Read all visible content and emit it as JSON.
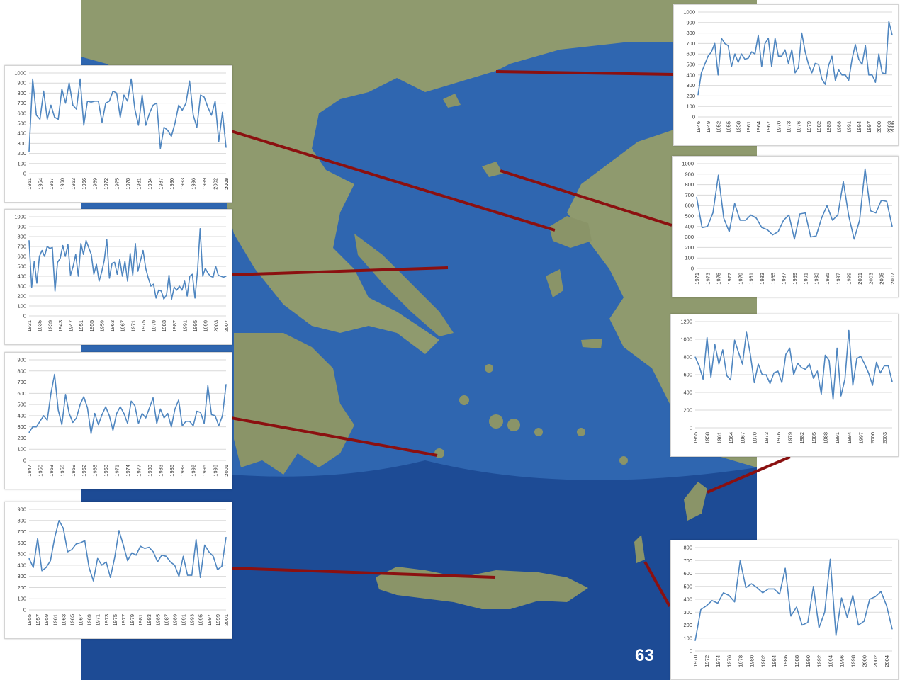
{
  "page": {
    "number": "63"
  },
  "colors": {
    "sea": "#2f66b0",
    "deep_sea": "#1d4b95",
    "land": "#8f9a6e",
    "connector": "#8b1010",
    "series": "#4f86c0",
    "grid": "#d9d9d9"
  },
  "chart_data": [
    {
      "id": "chart-1951-2008",
      "type": "line",
      "ylim": [
        0,
        1000
      ],
      "yticks": [
        0,
        100,
        200,
        300,
        400,
        500,
        600,
        700,
        800,
        900,
        1000
      ],
      "x_start": 1951,
      "x_tick_labels": [
        "1951",
        "1954",
        "1957",
        "1960",
        "1963",
        "1966",
        "1969",
        "1972",
        "1975",
        "1978",
        "1981",
        "1984",
        "1987",
        "1990",
        "1993",
        "1996",
        "1999",
        "2002",
        "2005",
        "2008"
      ],
      "values": [
        220,
        940,
        580,
        540,
        820,
        540,
        680,
        560,
        540,
        840,
        700,
        900,
        680,
        640,
        940,
        480,
        720,
        710,
        720,
        720,
        510,
        700,
        720,
        820,
        800,
        560,
        780,
        720,
        940,
        640,
        480,
        780,
        480,
        600,
        680,
        700,
        250,
        460,
        430,
        370,
        500,
        680,
        630,
        700,
        920,
        580,
        460,
        780,
        760,
        660,
        580,
        720,
        320,
        610,
        260
      ]
    },
    {
      "id": "chart-1931-2007",
      "type": "line",
      "ylim": [
        0,
        1000
      ],
      "yticks": [
        0,
        100,
        200,
        300,
        400,
        500,
        600,
        700,
        800,
        900,
        1000
      ],
      "x_start": 1931,
      "x_tick_labels": [
        "1931",
        "1935",
        "1939",
        "1943",
        "1947",
        "1951",
        "1955",
        "1959",
        "1963",
        "1967",
        "1971",
        "1975",
        "1979",
        "1983",
        "1987",
        "1991",
        "1995",
        "1999",
        "2003",
        "2007"
      ],
      "values": [
        760,
        290,
        550,
        330,
        600,
        660,
        600,
        700,
        680,
        690,
        250,
        540,
        580,
        710,
        600,
        720,
        410,
        500,
        620,
        400,
        730,
        620,
        760,
        690,
        620,
        420,
        520,
        350,
        440,
        560,
        770,
        380,
        530,
        540,
        420,
        570,
        400,
        550,
        350,
        630,
        410,
        730,
        450,
        560,
        660,
        480,
        380,
        300,
        320,
        180,
        260,
        250,
        170,
        210,
        410,
        170,
        290,
        260,
        300,
        260,
        350,
        200,
        400,
        420,
        180,
        460,
        880,
        400,
        480,
        430,
        400,
        390,
        500,
        410,
        400,
        390,
        400
      ]
    },
    {
      "id": "chart-1947-2001",
      "type": "line",
      "ylim": [
        0,
        900
      ],
      "yticks": [
        0,
        100,
        200,
        300,
        400,
        500,
        600,
        700,
        800,
        900
      ],
      "x_start": 1947,
      "x_tick_labels": [
        "1947",
        "1950",
        "1953",
        "1956",
        "1959",
        "1962",
        "1965",
        "1968",
        "1971",
        "1974",
        "1977",
        "1980",
        "1983",
        "1986",
        "1989",
        "1992",
        "1995",
        "1998",
        "2001"
      ],
      "values": [
        250,
        300,
        300,
        350,
        400,
        360,
        600,
        770,
        450,
        320,
        590,
        420,
        340,
        380,
        500,
        570,
        470,
        240,
        420,
        320,
        410,
        480,
        400,
        270,
        420,
        480,
        420,
        330,
        530,
        490,
        330,
        420,
        380,
        470,
        560,
        330,
        460,
        380,
        420,
        300,
        460,
        540,
        310,
        350,
        350,
        310,
        440,
        430,
        330,
        670,
        410,
        400,
        310,
        400,
        680
      ]
    },
    {
      "id": "chart-1955-2001",
      "type": "line",
      "ylim": [
        0,
        900
      ],
      "yticks": [
        0,
        100,
        200,
        300,
        400,
        500,
        600,
        700,
        800,
        900
      ],
      "x_start": 1955,
      "x_tick_labels": [
        "1955",
        "1957",
        "1959",
        "1961",
        "1963",
        "1965",
        "1967",
        "1969",
        "1971",
        "1973",
        "1975",
        "1977",
        "1979",
        "1981",
        "1983",
        "1985",
        "1987",
        "1989",
        "1991",
        "1993",
        "1995",
        "1997",
        "1999",
        "2001"
      ],
      "values": [
        460,
        380,
        640,
        350,
        380,
        440,
        650,
        800,
        730,
        520,
        540,
        590,
        600,
        620,
        380,
        260,
        460,
        400,
        430,
        290,
        470,
        710,
        580,
        440,
        510,
        490,
        570,
        550,
        560,
        520,
        430,
        490,
        480,
        430,
        400,
        300,
        480,
        310,
        310,
        630,
        290,
        580,
        520,
        480,
        360,
        390,
        650
      ]
    },
    {
      "id": "chart-1946-2006",
      "type": "line",
      "ylim": [
        0,
        1000
      ],
      "yticks": [
        0,
        100,
        200,
        300,
        400,
        500,
        600,
        700,
        800,
        900,
        1000
      ],
      "x_start": 1946,
      "x_tick_labels": [
        "1946",
        "1949",
        "1952",
        "1955",
        "1958",
        "1961",
        "1964",
        "1967",
        "1970",
        "1973",
        "1976",
        "1979",
        "1982",
        "1985",
        "1988",
        "1991",
        "1994",
        "1997",
        "2000",
        "2003",
        "2006"
      ],
      "values": [
        210,
        420,
        500,
        580,
        620,
        700,
        400,
        750,
        700,
        680,
        480,
        600,
        520,
        600,
        550,
        560,
        620,
        600,
        780,
        480,
        700,
        750,
        480,
        750,
        580,
        580,
        640,
        510,
        640,
        420,
        470,
        800,
        620,
        500,
        420,
        510,
        500,
        360,
        310,
        490,
        580,
        350,
        450,
        400,
        400,
        350,
        550,
        690,
        550,
        500,
        680,
        400,
        400,
        330,
        600,
        420,
        410,
        910,
        780
      ]
    },
    {
      "id": "chart-1971-2007",
      "type": "line",
      "ylim": [
        0,
        1000
      ],
      "yticks": [
        0,
        100,
        200,
        300,
        400,
        500,
        600,
        700,
        800,
        900,
        1000
      ],
      "x_start": 1971,
      "x_tick_labels": [
        "1971",
        "1973",
        "1975",
        "1977",
        "1979",
        "1981",
        "1983",
        "1985",
        "1987",
        "1989",
        "1991",
        "1993",
        "1995",
        "1997",
        "1999",
        "2001",
        "2003",
        "2005",
        "2007"
      ],
      "values": [
        680,
        390,
        400,
        530,
        890,
        480,
        350,
        620,
        460,
        460,
        510,
        480,
        390,
        370,
        320,
        350,
        460,
        510,
        280,
        520,
        530,
        300,
        310,
        480,
        600,
        460,
        510,
        830,
        500,
        280,
        460,
        950,
        550,
        530,
        650,
        640,
        400
      ]
    },
    {
      "id": "chart-1955-2005",
      "type": "line",
      "ylim": [
        0,
        1200
      ],
      "yticks": [
        0,
        200,
        400,
        600,
        800,
        1000,
        1200
      ],
      "x_start": 1955,
      "x_tick_labels": [
        "1955",
        "1958",
        "1961",
        "1964",
        "1967",
        "1970",
        "1973",
        "1976",
        "1979",
        "1982",
        "1985",
        "1988",
        "1991",
        "1994",
        "1997",
        "2000",
        "2003"
      ],
      "values": [
        800,
        700,
        550,
        1020,
        570,
        940,
        720,
        880,
        590,
        540,
        990,
        850,
        720,
        1080,
        830,
        510,
        720,
        600,
        600,
        500,
        620,
        640,
        510,
        830,
        900,
        600,
        730,
        680,
        660,
        720,
        560,
        640,
        380,
        820,
        760,
        320,
        900,
        360,
        550,
        1100,
        480,
        780,
        810,
        720,
        620,
        480,
        740,
        620,
        700,
        700,
        520
      ]
    },
    {
      "id": "chart-1970-2005",
      "type": "line",
      "ylim": [
        0,
        800
      ],
      "yticks": [
        0,
        100,
        200,
        300,
        400,
        500,
        600,
        700,
        800
      ],
      "x_start": 1970,
      "x_tick_labels": [
        "1970",
        "1972",
        "1974",
        "1976",
        "1978",
        "1980",
        "1982",
        "1984",
        "1986",
        "1988",
        "1990",
        "1992",
        "1994",
        "1996",
        "1998",
        "2000",
        "2002",
        "2004"
      ],
      "values": [
        80,
        320,
        350,
        390,
        370,
        450,
        430,
        380,
        700,
        490,
        520,
        490,
        450,
        480,
        480,
        440,
        640,
        270,
        340,
        200,
        220,
        500,
        180,
        300,
        710,
        120,
        410,
        260,
        430,
        200,
        230,
        400,
        420,
        460,
        350,
        170
      ]
    }
  ]
}
